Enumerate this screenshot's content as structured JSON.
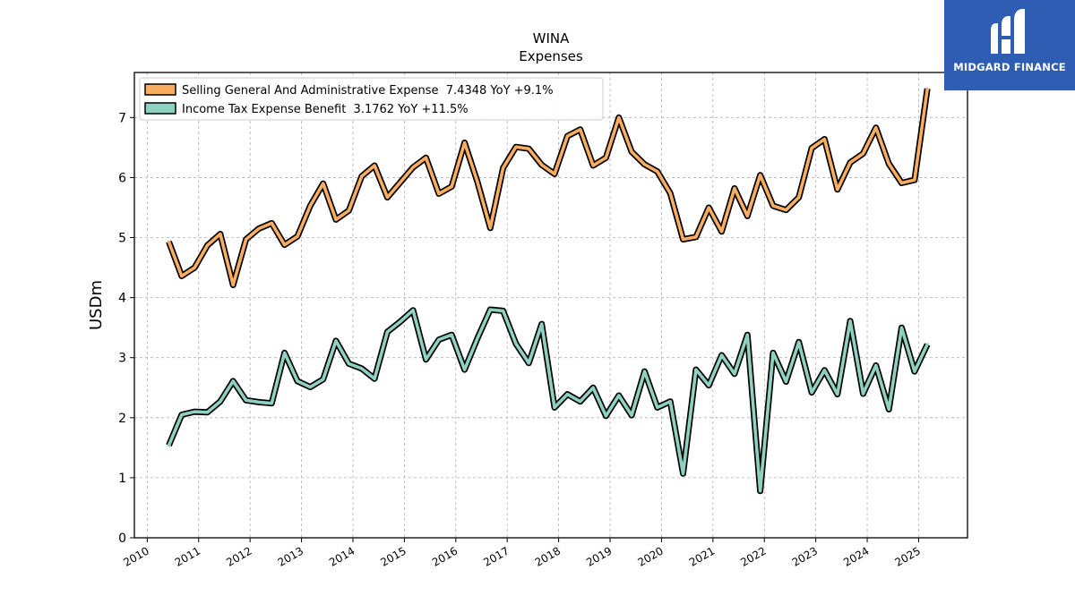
{
  "brand": {
    "name": "MIDGARD FINANCE",
    "box_color": "#2f5db3",
    "icon": "stylized-m-logo-icon"
  },
  "colors": {
    "sga": "#f9ad60",
    "tax": "#8fd1c1",
    "outline": "#000000",
    "grid": "#b0b0b0"
  },
  "chart_data": {
    "type": "line",
    "title": "WINA",
    "subtitle": "Expenses",
    "xlabel": "",
    "ylabel": "USDm",
    "ylim": [
      0,
      7.75
    ],
    "xlim": [
      2009.75,
      2025.95
    ],
    "yticks": [
      0,
      1,
      2,
      3,
      4,
      5,
      6,
      7
    ],
    "xticks": [
      2010,
      2011,
      2012,
      2013,
      2014,
      2015,
      2016,
      2017,
      2018,
      2019,
      2020,
      2021,
      2022,
      2023,
      2024,
      2025
    ],
    "grid": true,
    "legend_position": "top-left",
    "series": [
      {
        "name": "Selling General And Administrative Expense  7.4348 YoY +9.1%",
        "color": "#f9ad60",
        "x": [
          2010.42,
          2010.67,
          2010.92,
          2011.17,
          2011.42,
          2011.67,
          2011.92,
          2012.17,
          2012.42,
          2012.67,
          2012.92,
          2013.17,
          2013.42,
          2013.67,
          2013.92,
          2014.17,
          2014.42,
          2014.67,
          2014.92,
          2015.17,
          2015.42,
          2015.67,
          2015.92,
          2016.17,
          2016.42,
          2016.67,
          2016.92,
          2017.17,
          2017.42,
          2017.67,
          2017.92,
          2018.17,
          2018.42,
          2018.67,
          2018.92,
          2019.17,
          2019.42,
          2019.67,
          2019.92,
          2020.17,
          2020.42,
          2020.67,
          2020.92,
          2021.17,
          2021.42,
          2021.67,
          2021.92,
          2022.17,
          2022.42,
          2022.67,
          2022.92,
          2023.17,
          2023.42,
          2023.67,
          2023.92,
          2024.17,
          2024.42,
          2024.67,
          2024.92,
          2025.17
        ],
        "values": [
          4.93,
          4.36,
          4.5,
          4.87,
          5.06,
          4.21,
          4.97,
          5.15,
          5.24,
          4.88,
          5.02,
          5.53,
          5.9,
          5.3,
          5.45,
          6.02,
          6.2,
          5.67,
          5.92,
          6.17,
          6.33,
          5.73,
          5.85,
          6.58,
          5.93,
          5.16,
          6.16,
          6.51,
          6.48,
          6.21,
          6.06,
          6.69,
          6.8,
          6.2,
          6.33,
          7.0,
          6.43,
          6.22,
          6.1,
          5.74,
          4.97,
          5.01,
          5.5,
          5.1,
          5.82,
          5.36,
          6.04,
          5.53,
          5.46,
          5.67,
          6.49,
          6.64,
          5.8,
          6.25,
          6.4,
          6.83,
          6.23,
          5.91,
          5.96,
          7.48
        ]
      },
      {
        "name": "Income Tax Expense Benefit  3.1762 YoY +11.5%",
        "color": "#8fd1c1",
        "x": [
          2010.42,
          2010.67,
          2010.92,
          2011.17,
          2011.42,
          2011.67,
          2011.92,
          2012.17,
          2012.42,
          2012.67,
          2012.92,
          2013.17,
          2013.42,
          2013.67,
          2013.92,
          2014.17,
          2014.42,
          2014.67,
          2014.92,
          2015.17,
          2015.42,
          2015.67,
          2015.92,
          2016.17,
          2016.42,
          2016.67,
          2016.92,
          2017.17,
          2017.42,
          2017.67,
          2017.92,
          2018.17,
          2018.42,
          2018.67,
          2018.92,
          2019.17,
          2019.42,
          2019.67,
          2019.92,
          2020.17,
          2020.42,
          2020.67,
          2020.92,
          2021.17,
          2021.42,
          2021.67,
          2021.92,
          2022.17,
          2022.42,
          2022.67,
          2022.92,
          2023.17,
          2023.42,
          2023.67,
          2023.92,
          2024.17,
          2024.42,
          2024.67,
          2024.92,
          2025.17
        ],
        "values": [
          1.54,
          2.05,
          2.1,
          2.09,
          2.27,
          2.61,
          2.29,
          2.26,
          2.24,
          3.08,
          2.61,
          2.51,
          2.64,
          3.28,
          2.9,
          2.82,
          2.65,
          3.43,
          3.6,
          3.79,
          2.97,
          3.3,
          3.38,
          2.8,
          3.32,
          3.8,
          3.78,
          3.23,
          2.91,
          3.56,
          2.17,
          2.39,
          2.27,
          2.5,
          2.03,
          2.37,
          2.04,
          2.77,
          2.17,
          2.27,
          1.07,
          2.8,
          2.54,
          3.04,
          2.73,
          3.38,
          0.78,
          3.08,
          2.6,
          3.26,
          2.42,
          2.79,
          2.39,
          3.61,
          2.4,
          2.87,
          2.14,
          3.5,
          2.77,
          3.22
        ]
      }
    ]
  }
}
